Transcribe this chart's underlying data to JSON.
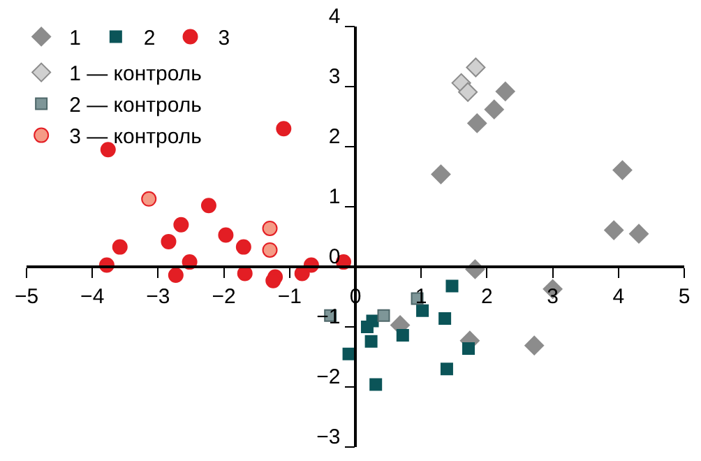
{
  "chart_data": {
    "type": "scatter",
    "legend": "top left",
    "grid": false,
    "xlim": [
      -5,
      5
    ],
    "xticks": [
      -5,
      -4,
      -3,
      -2,
      -1,
      0,
      1,
      2,
      3,
      4,
      5
    ],
    "ylim": [
      -3,
      4
    ],
    "yticks": [
      -3,
      -2,
      -1,
      0,
      1,
      2,
      3,
      4
    ],
    "series": [
      {
        "name": "1",
        "color": "#8c8c8c",
        "marker": "diamond",
        "x": [
          1.3,
          1.85,
          2.11,
          2.28,
          4.06,
          3.93,
          4.31,
          1.82,
          3.0,
          0.68,
          1.74,
          2.72
        ],
        "values": [
          1.54,
          2.39,
          2.62,
          2.92,
          1.61,
          0.61,
          0.55,
          -0.04,
          -0.37,
          -0.97,
          -1.23,
          -1.31
        ]
      },
      {
        "name": "2",
        "color": "#0b5458",
        "marker": "square",
        "x": [
          1.47,
          1.02,
          1.36,
          0.26,
          0.18,
          0.72,
          0.24,
          -0.1,
          1.72,
          1.39,
          0.31
        ],
        "values": [
          -0.32,
          -0.73,
          -0.86,
          -0.9,
          -1.0,
          -1.14,
          -1.24,
          -1.45,
          -1.36,
          -1.7,
          -1.96
        ]
      },
      {
        "name": "3",
        "color": "#e31e24",
        "marker": "circle",
        "x": [
          -3.76,
          -1.09,
          -3.58,
          -3.78,
          -2.84,
          -2.65,
          -2.23,
          -1.97,
          -1.7,
          -2.52,
          -2.73,
          -1.68,
          -1.22,
          -1.25,
          -0.81,
          -0.67,
          -0.18
        ],
        "values": [
          1.95,
          2.3,
          0.33,
          0.03,
          0.42,
          0.7,
          1.02,
          0.53,
          0.33,
          0.08,
          -0.14,
          -0.11,
          -0.17,
          -0.23,
          -0.11,
          0.03,
          0.08
        ]
      },
      {
        "name": "1 — контроль",
        "color": "#d0d0d0",
        "marker": "diamond",
        "x": [
          1.83,
          1.61,
          1.71
        ],
        "values": [
          3.32,
          3.06,
          2.91
        ]
      },
      {
        "name": "2 — контроль",
        "color": "#7e9698",
        "marker": "square",
        "x": [
          0.94,
          0.43,
          -0.38
        ],
        "values": [
          -0.53,
          -0.81,
          -0.81
        ]
      },
      {
        "name": "3 — контроль",
        "color": "#f59b86",
        "marker": "circle",
        "x": [
          -3.14,
          -1.3,
          -1.3
        ],
        "values": [
          1.13,
          0.64,
          0.28
        ]
      }
    ]
  }
}
